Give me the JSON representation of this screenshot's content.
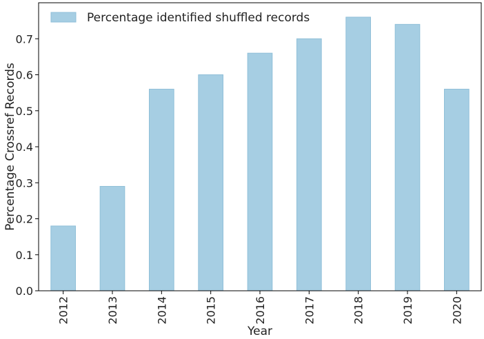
{
  "chart_data": {
    "type": "bar",
    "categories": [
      "2012",
      "2013",
      "2014",
      "2015",
      "2016",
      "2017",
      "2018",
      "2019",
      "2020"
    ],
    "series": [
      {
        "name": "Percentage identified shuffled records",
        "values": [
          0.18,
          0.29,
          0.56,
          0.6,
          0.66,
          0.7,
          0.76,
          0.74,
          0.56
        ]
      }
    ],
    "xlabel": "Year",
    "ylabel": "Percentage Crossref Records",
    "ylim": [
      0,
      0.8
    ],
    "yticks": [
      "0.0",
      "0.1",
      "0.2",
      "0.3",
      "0.4",
      "0.5",
      "0.6",
      "0.7"
    ],
    "grid": false,
    "legend_position": "top-left",
    "colors": {
      "bar_fill": "#a6cee3",
      "bar_edge": "#8fbfd8",
      "axis": "#000000"
    }
  }
}
